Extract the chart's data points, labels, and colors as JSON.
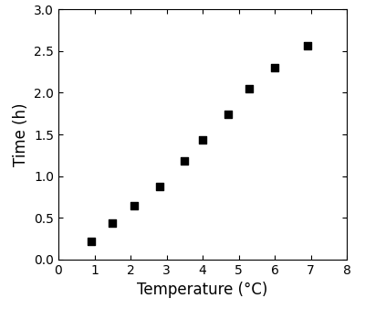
{
  "x": [
    0.9,
    1.5,
    2.1,
    2.8,
    3.5,
    4.0,
    4.7,
    5.3,
    6.0,
    6.9
  ],
  "y": [
    0.22,
    0.44,
    0.65,
    0.88,
    1.18,
    1.43,
    1.74,
    2.05,
    2.3,
    2.56
  ],
  "xlabel": "Temperature (°C)",
  "ylabel": "Time (h)",
  "xlim": [
    0,
    8
  ],
  "ylim": [
    0.0,
    3.0
  ],
  "xticks": [
    0,
    1,
    2,
    3,
    4,
    5,
    6,
    7,
    8
  ],
  "yticks": [
    0.0,
    0.5,
    1.0,
    1.5,
    2.0,
    2.5,
    3.0
  ],
  "marker": "s",
  "marker_color": "black",
  "marker_size": 6,
  "background_color": "#ffffff",
  "spine_color": "#000000",
  "xlabel_fontsize": 12,
  "ylabel_fontsize": 12,
  "tick_labelsize": 10
}
